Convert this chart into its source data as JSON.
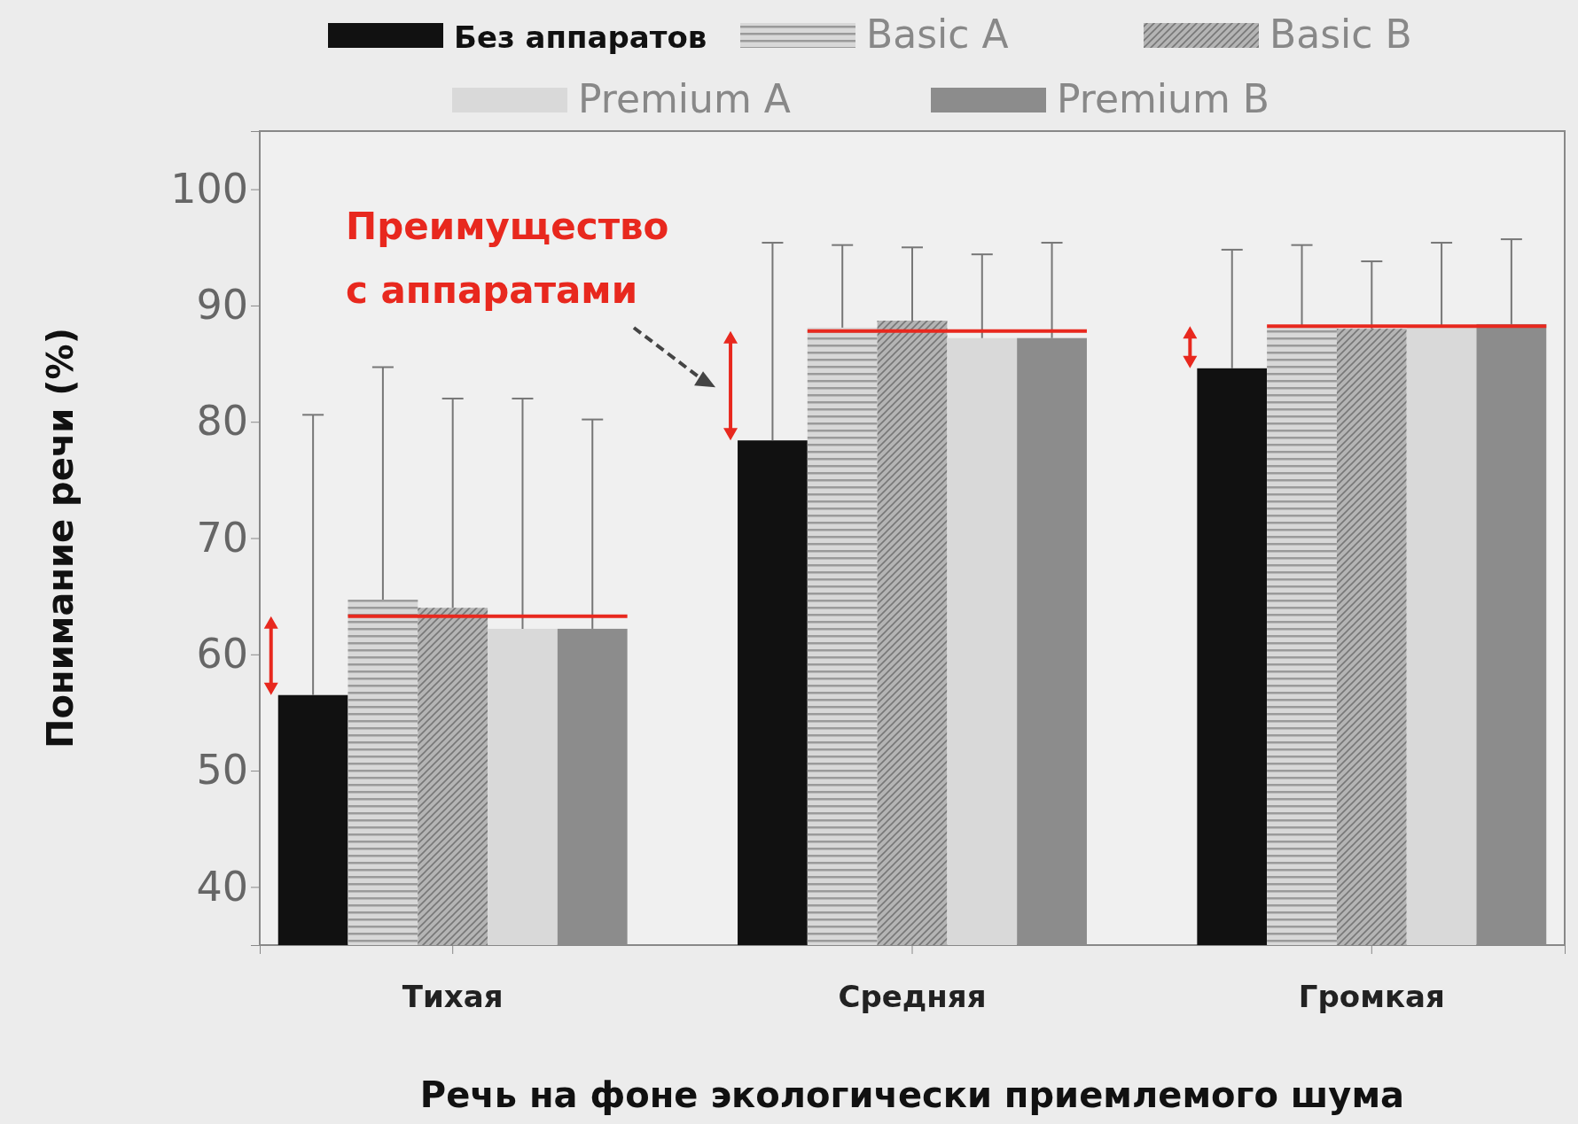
{
  "chart_data": {
    "type": "bar",
    "xlabel": "Речь на фоне экологически приемлемого шума",
    "ylabel": "Понимание речи (%)",
    "categories": [
      "Тихая",
      "Средняя",
      "Громкая"
    ],
    "series": [
      {
        "name": "Без аппаратов",
        "color": "#111111",
        "values": [
          56.5,
          78.4,
          84.6
        ],
        "errors": [
          [
            56.5,
            80.6
          ],
          [
            78.4,
            95.4
          ],
          [
            84.6,
            94.8
          ]
        ]
      },
      {
        "name": "Basic A",
        "color": "#d8d8d8",
        "values": [
          64.7,
          88.1,
          88.2
        ],
        "errors": [
          [
            64.7,
            84.7
          ],
          [
            88.1,
            95.2
          ],
          [
            88.2,
            95.2
          ]
        ]
      },
      {
        "name": "Basic B",
        "color": "#b4b4b4",
        "values": [
          64,
          88.7,
          88
        ],
        "errors": [
          [
            64,
            82
          ],
          [
            88.7,
            95
          ],
          [
            88,
            93.8
          ]
        ]
      },
      {
        "name": "Premium A",
        "color": "#d9d9d9",
        "values": [
          62.2,
          87.2,
          88.3
        ],
        "errors": [
          [
            62.2,
            82
          ],
          [
            87.2,
            94.4
          ],
          [
            88.3,
            95.4
          ]
        ]
      },
      {
        "name": "Premium B",
        "color": "#8c8c8c",
        "values": [
          62.2,
          87.2,
          88.4
        ],
        "errors": [
          [
            62.2,
            80.2
          ],
          [
            87.2,
            95.4
          ],
          [
            88.4,
            95.7
          ]
        ]
      }
    ],
    "ylim": [
      35,
      105
    ],
    "yticks": [
      40,
      50,
      60,
      70,
      80,
      90,
      100
    ],
    "grid": false,
    "legend": "top",
    "annotations": [
      "Преимущество с аппаратами"
    ]
  }
}
